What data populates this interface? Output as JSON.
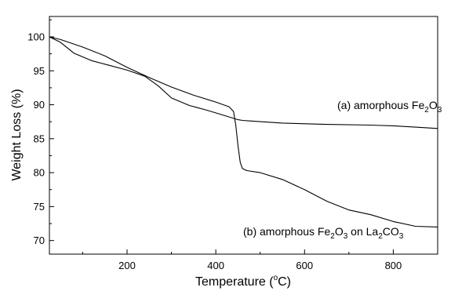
{
  "chart_data": {
    "type": "line",
    "title": "",
    "xlabel_parts": [
      "Temperature (",
      "o",
      "C)"
    ],
    "ylabel": "Weight Loss (%)",
    "xlim": [
      25,
      900
    ],
    "ylim": [
      68,
      103
    ],
    "xticks": [
      200,
      400,
      600,
      800
    ],
    "xtick_labels": [
      "200",
      "400",
      "600",
      "800"
    ],
    "yticks": [
      70,
      75,
      80,
      85,
      90,
      95,
      100
    ],
    "ytick_labels": [
      "70",
      "75",
      "80",
      "85",
      "90",
      "95",
      "100"
    ],
    "grid": false,
    "series": [
      {
        "label_parts": [
          "(a) amorphous Fe",
          "2",
          "O",
          "3"
        ],
        "color": "#000000",
        "x": [
          25,
          50,
          80,
          120,
          160,
          200,
          240,
          270,
          300,
          340,
          380,
          420,
          440,
          450,
          460,
          480,
          550,
          650,
          750,
          800,
          850,
          900
        ],
        "y": [
          100,
          99.2,
          97.6,
          96.5,
          95.8,
          95.1,
          94.2,
          92.8,
          91.0,
          89.9,
          89.2,
          88.4,
          88.0,
          87.8,
          87.7,
          87.6,
          87.3,
          87.1,
          87.0,
          86.9,
          86.7,
          86.5
        ]
      },
      {
        "label_parts": [
          "(b) amorphous Fe",
          "2",
          "O",
          "3",
          " on La",
          "2",
          "CO",
          "3"
        ],
        "color": "#000000",
        "x": [
          25,
          50,
          100,
          150,
          200,
          250,
          300,
          350,
          400,
          430,
          440,
          445,
          450,
          455,
          460,
          470,
          500,
          550,
          600,
          650,
          700,
          750,
          800,
          850,
          900
        ],
        "y": [
          100,
          99.6,
          98.5,
          97.2,
          95.5,
          94.0,
          92.6,
          91.4,
          90.4,
          89.7,
          89.0,
          87.0,
          84.0,
          81.5,
          80.6,
          80.3,
          80.0,
          79.0,
          77.5,
          75.8,
          74.5,
          73.8,
          72.8,
          72.1,
          72.0
        ]
      }
    ]
  }
}
